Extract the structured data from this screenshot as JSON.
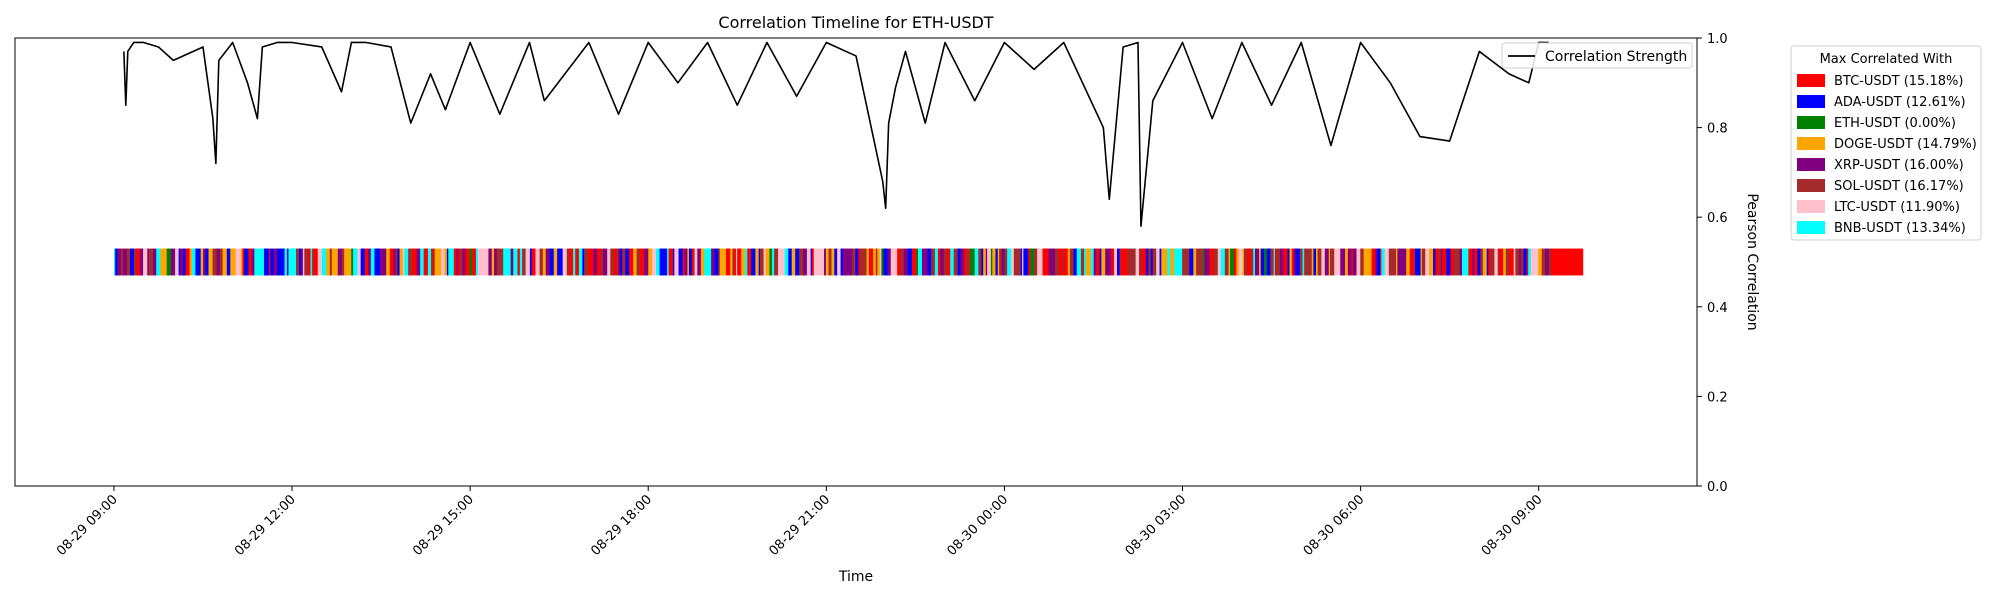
{
  "chart_data": {
    "type": "line",
    "title": "Correlation Timeline for ETH-USDT",
    "xlabel": "Time",
    "ylabel": "Pearson Correlation",
    "ylim": [
      0,
      1.0
    ],
    "xlim": [
      "08-29 07:20",
      "08-30 11:40"
    ],
    "y_ticks": [
      "0.0",
      "0.2",
      "0.4",
      "0.6",
      "0.8",
      "1.0"
    ],
    "x_ticks": [
      "08-29 09:00",
      "08-29 12:00",
      "08-29 15:00",
      "08-29 18:00",
      "08-29 21:00",
      "08-30 00:00",
      "08-30 03:00",
      "08-30 06:00",
      "08-30 09:00"
    ],
    "grid": false,
    "series": [
      {
        "name": "Correlation Strength",
        "color": "#000000",
        "x": [
          "08-29 09:10",
          "08-29 09:12",
          "08-29 09:14",
          "08-29 09:20",
          "08-29 09:30",
          "08-29 09:45",
          "08-29 10:00",
          "08-29 10:30",
          "08-29 10:40",
          "08-29 10:43",
          "08-29 10:46",
          "08-29 11:00",
          "08-29 11:15",
          "08-29 11:25",
          "08-29 11:30",
          "08-29 11:45",
          "08-29 12:00",
          "08-29 12:30",
          "08-29 12:50",
          "08-29 13:00",
          "08-29 13:15",
          "08-29 13:40",
          "08-29 14:00",
          "08-29 14:20",
          "08-29 14:35",
          "08-29 15:00",
          "08-29 15:30",
          "08-29 16:00",
          "08-29 16:15",
          "08-29 17:00",
          "08-29 17:30",
          "08-29 18:00",
          "08-29 18:30",
          "08-29 19:00",
          "08-29 19:30",
          "08-29 20:00",
          "08-29 20:30",
          "08-29 21:00",
          "08-29 21:30",
          "08-29 21:57",
          "08-29 22:00",
          "08-29 22:03",
          "08-29 22:10",
          "08-29 22:20",
          "08-29 22:40",
          "08-29 23:00",
          "08-29 23:30",
          "08-30 00:00",
          "08-30 00:30",
          "08-30 01:00",
          "08-30 01:40",
          "08-30 01:46",
          "08-30 02:00",
          "08-30 02:15",
          "08-30 02:18",
          "08-30 02:30",
          "08-30 03:00",
          "08-30 03:30",
          "08-30 04:00",
          "08-30 04:30",
          "08-30 05:00",
          "08-30 05:30",
          "08-30 06:00",
          "08-30 06:30",
          "08-30 07:00",
          "08-30 07:30",
          "08-30 08:00",
          "08-30 08:30",
          "08-30 08:50",
          "08-30 09:00",
          "08-30 09:10"
        ],
        "values": [
          0.97,
          0.85,
          0.97,
          0.99,
          0.99,
          0.98,
          0.95,
          0.98,
          0.82,
          0.72,
          0.95,
          0.99,
          0.9,
          0.82,
          0.98,
          0.99,
          0.99,
          0.98,
          0.88,
          0.99,
          0.99,
          0.98,
          0.81,
          0.92,
          0.84,
          0.99,
          0.83,
          0.99,
          0.86,
          0.99,
          0.83,
          0.99,
          0.9,
          0.99,
          0.85,
          0.99,
          0.87,
          0.99,
          0.96,
          0.68,
          0.62,
          0.81,
          0.89,
          0.97,
          0.81,
          0.99,
          0.86,
          0.99,
          0.93,
          0.99,
          0.8,
          0.64,
          0.98,
          0.99,
          0.58,
          0.86,
          0.99,
          0.82,
          0.99,
          0.85,
          0.99,
          0.76,
          0.99,
          0.9,
          0.78,
          0.77,
          0.97,
          0.92,
          0.9,
          0.99,
          0.99
        ]
      }
    ],
    "category_strip": {
      "y_range": [
        0.47,
        0.53
      ],
      "start": "08-29 09:00",
      "end": "08-30 09:45",
      "colors": [
        "#ff0000",
        "#0000ff",
        "#008000",
        "#ffa500",
        "#800080",
        "#a52a2a",
        "#ffc0cb",
        "#00ffff"
      ]
    },
    "legends": [
      {
        "placement": "top-right inside plot",
        "entries": [
          {
            "label": "Correlation Strength",
            "color": "#000000",
            "kind": "line"
          }
        ]
      },
      {
        "title": "Max Correlated With",
        "placement": "outside right",
        "entries": [
          {
            "label": "BTC-USDT (15.18%)",
            "color": "#ff0000"
          },
          {
            "label": "ADA-USDT (12.61%)",
            "color": "#0000ff"
          },
          {
            "label": "ETH-USDT (0.00%)",
            "color": "#008000"
          },
          {
            "label": "DOGE-USDT (14.79%)",
            "color": "#ffa500"
          },
          {
            "label": "XRP-USDT (16.00%)",
            "color": "#800080"
          },
          {
            "label": "SOL-USDT (16.17%)",
            "color": "#a52a2a"
          },
          {
            "label": "LTC-USDT (11.90%)",
            "color": "#ffc0cb"
          },
          {
            "label": "BNB-USDT (13.34%)",
            "color": "#00ffff"
          }
        ]
      }
    ]
  }
}
